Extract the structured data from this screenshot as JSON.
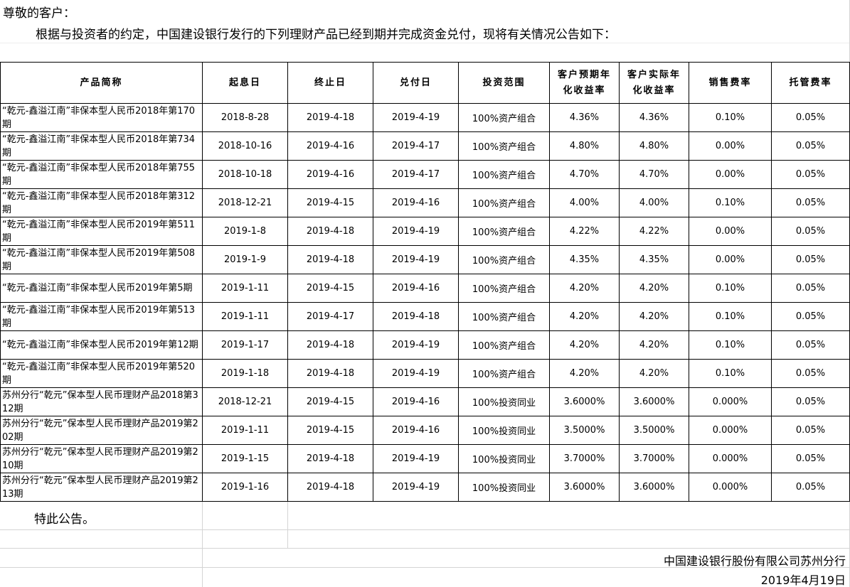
{
  "greeting": "尊敬的客户：",
  "paragraph": "根据与投资者的约定，中国建设银行发行的下列理财产品已经到期并完成资金兑付，现将有关情况公告如下：",
  "headers": [
    "产品简称",
    "起息日",
    "终止日",
    "兑付日",
    "投资范围",
    "客户预期年化收益率",
    "客户实际年化收益率",
    "销售费率",
    "托管费率"
  ],
  "rows": [
    [
      "“乾元-鑫溢江南”非保本型人民币2018年第170期",
      "2018-8-28",
      "2019-4-18",
      "2019-4-19",
      "100%资产组合",
      "4.36%",
      "4.36%",
      "0.10%",
      "0.05%"
    ],
    [
      "“乾元-鑫溢江南”非保本型人民币2018年第734期",
      "2018-10-16",
      "2019-4-16",
      "2019-4-17",
      "100%资产组合",
      "4.80%",
      "4.80%",
      "0.00%",
      "0.05%"
    ],
    [
      "“乾元-鑫溢江南”非保本型人民币2018年第755期",
      "2018-10-18",
      "2019-4-16",
      "2019-4-17",
      "100%资产组合",
      "4.70%",
      "4.70%",
      "0.00%",
      "0.05%"
    ],
    [
      "“乾元-鑫溢江南”非保本型人民币2018年第312期",
      "2018-12-21",
      "2019-4-15",
      "2019-4-16",
      "100%资产组合",
      "4.00%",
      "4.00%",
      "0.10%",
      "0.05%"
    ],
    [
      "“乾元-鑫溢江南”非保本型人民币2019年第511期",
      "2019-1-8",
      "2019-4-18",
      "2019-4-19",
      "100%资产组合",
      "4.22%",
      "4.22%",
      "0.00%",
      "0.05%"
    ],
    [
      "“乾元-鑫溢江南”非保本型人民币2019年第508期",
      "2019-1-9",
      "2019-4-18",
      "2019-4-19",
      "100%资产组合",
      "4.35%",
      "4.35%",
      "0.00%",
      "0.05%"
    ],
    [
      "“乾元-鑫溢江南”非保本型人民币2019年第5期",
      "2019-1-11",
      "2019-4-15",
      "2019-4-16",
      "100%资产组合",
      "4.20%",
      "4.20%",
      "0.10%",
      "0.05%"
    ],
    [
      "“乾元-鑫溢江南”非保本型人民币2019年第513期",
      "2019-1-11",
      "2019-4-17",
      "2019-4-18",
      "100%资产组合",
      "4.20%",
      "4.20%",
      "0.10%",
      "0.05%"
    ],
    [
      "“乾元-鑫溢江南”非保本型人民币2019年第12期",
      "2019-1-17",
      "2019-4-18",
      "2019-4-19",
      "100%资产组合",
      "4.20%",
      "4.20%",
      "0.10%",
      "0.05%"
    ],
    [
      "“乾元-鑫溢江南”非保本型人民币2019年第520期",
      "2019-1-18",
      "2019-4-18",
      "2019-4-19",
      "100%资产组合",
      "4.20%",
      "4.20%",
      "0.10%",
      "0.05%"
    ],
    [
      "苏州分行“乾元”保本型人民币理财产品2018第312期",
      "2018-12-21",
      "2019-4-15",
      "2019-4-16",
      "100%投资同业",
      "3.6000%",
      "3.6000%",
      "0.000%",
      "0.05%"
    ],
    [
      "苏州分行“乾元”保本型人民币理财产品2019第202期",
      "2019-1-11",
      "2019-4-15",
      "2019-4-16",
      "100%投资同业",
      "3.5000%",
      "3.5000%",
      "0.000%",
      "0.05%"
    ],
    [
      "苏州分行“乾元”保本型人民币理财产品2019第210期",
      "2019-1-15",
      "2019-4-18",
      "2019-4-19",
      "100%投资同业",
      "3.7000%",
      "3.7000%",
      "0.000%",
      "0.05%"
    ],
    [
      "苏州分行“乾元”保本型人民币理财产品2019第213期",
      "2019-1-16",
      "2019-4-18",
      "2019-4-19",
      "100%投资同业",
      "3.6000%",
      "3.6000%",
      "0.000%",
      "0.05%"
    ]
  ],
  "notice": "特此公告。",
  "issuer": "中国建设银行股份有限公司苏州分行",
  "date": "2019年4月19日"
}
